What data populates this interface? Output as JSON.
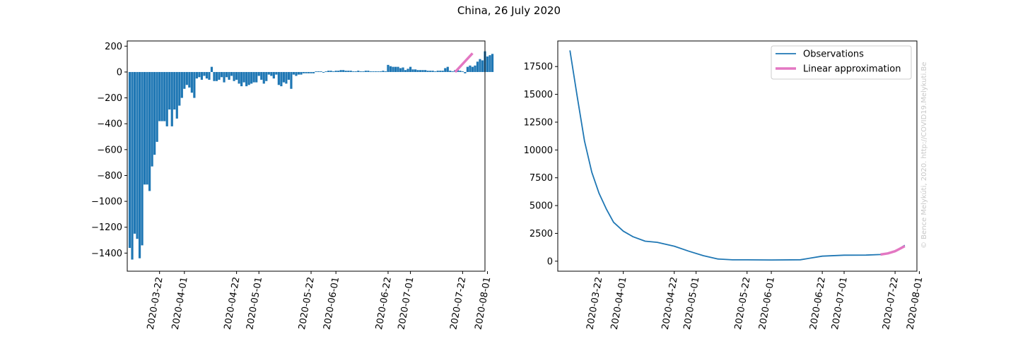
{
  "figure": {
    "title": "China, 26 July 2020"
  },
  "watermark": "© Bence Melykúti, 2020. http://COVID19.Melykuti.Be",
  "colors": {
    "bars": "#1f77b4",
    "observations": "#1f77b4",
    "fit": "#e377c2"
  },
  "chart_data": [
    {
      "type": "bar",
      "title": "",
      "xlabel": "",
      "ylabel": "",
      "xlim": [
        "2020-03-09",
        "2020-07-31"
      ],
      "ylim": [
        -1540,
        240
      ],
      "x_ticks": [
        "2020-03-22",
        "2020-04-01",
        "2020-04-22",
        "2020-05-01",
        "2020-05-22",
        "2020-06-01",
        "2020-06-22",
        "2020-07-01",
        "2020-07-22",
        "2020-08-01"
      ],
      "y_ticks": [
        "200",
        "0",
        "−200",
        "−400",
        "−600",
        "−800",
        "−1000",
        "−1200",
        "−1400"
      ],
      "y_tick_values": [
        200,
        0,
        -200,
        -400,
        -600,
        -800,
        -1000,
        -1200,
        -1400
      ],
      "start_date": "2020-03-10",
      "values": [
        -1360,
        -1450,
        -1250,
        -1290,
        -1440,
        -1340,
        -870,
        -870,
        -920,
        -730,
        -640,
        -540,
        -380,
        -380,
        -380,
        -420,
        -290,
        -420,
        -290,
        -360,
        -260,
        -200,
        -130,
        -100,
        -120,
        -160,
        -200,
        -50,
        -40,
        -60,
        -30,
        -50,
        -60,
        40,
        -70,
        -70,
        -60,
        -40,
        -80,
        -40,
        -60,
        -30,
        -70,
        -60,
        -90,
        -110,
        -80,
        -110,
        -100,
        -90,
        -80,
        -80,
        -30,
        -60,
        -90,
        -70,
        -20,
        -30,
        -50,
        -20,
        -100,
        -110,
        -80,
        -90,
        -60,
        -130,
        -20,
        -30,
        -20,
        -20,
        -10,
        -10,
        -10,
        -10,
        -10,
        5,
        5,
        5,
        -5,
        5,
        10,
        10,
        5,
        10,
        10,
        15,
        15,
        10,
        10,
        10,
        5,
        5,
        10,
        5,
        5,
        10,
        10,
        5,
        5,
        5,
        5,
        5,
        10,
        5,
        55,
        45,
        40,
        40,
        40,
        30,
        35,
        15,
        25,
        40,
        20,
        20,
        15,
        15,
        15,
        15,
        10,
        10,
        10,
        5,
        10,
        10,
        10,
        30,
        40,
        10,
        5,
        15,
        20,
        10,
        5,
        -10,
        40,
        50,
        40,
        50,
        80,
        100,
        90,
        160,
        120,
        130,
        140
      ],
      "fit": {
        "name": "Linear approximation",
        "x": [
          "2020-07-19",
          "2020-07-26"
        ],
        "y": [
          0,
          145
        ]
      }
    },
    {
      "type": "line",
      "title": "",
      "xlabel": "",
      "ylabel": "",
      "xlim": [
        "2020-03-05",
        "2020-07-31"
      ],
      "ylim": [
        -900,
        19800
      ],
      "x_ticks": [
        "2020-03-22",
        "2020-04-01",
        "2020-04-22",
        "2020-05-01",
        "2020-05-22",
        "2020-06-01",
        "2020-06-22",
        "2020-07-01",
        "2020-07-22",
        "2020-08-01"
      ],
      "y_ticks": [
        "17500",
        "15000",
        "12500",
        "10000",
        "7500",
        "5000",
        "2500",
        "0"
      ],
      "y_tick_values": [
        17500,
        15000,
        12500,
        10000,
        7500,
        5000,
        2500,
        0
      ],
      "legend": {
        "position": "upper right"
      },
      "series": [
        {
          "name": "Observations",
          "x": [
            "2020-03-10",
            "2020-03-13",
            "2020-03-16",
            "2020-03-19",
            "2020-03-22",
            "2020-03-25",
            "2020-03-28",
            "2020-04-01",
            "2020-04-05",
            "2020-04-10",
            "2020-04-15",
            "2020-04-22",
            "2020-04-28",
            "2020-05-04",
            "2020-05-10",
            "2020-05-16",
            "2020-05-22",
            "2020-06-01",
            "2020-06-13",
            "2020-06-22",
            "2020-07-01",
            "2020-07-10",
            "2020-07-16",
            "2020-07-19",
            "2020-07-22",
            "2020-07-26"
          ],
          "values": [
            18950,
            14800,
            10800,
            8000,
            6100,
            4700,
            3500,
            2700,
            2200,
            1800,
            1700,
            1350,
            900,
            500,
            200,
            120,
            120,
            110,
            130,
            450,
            540,
            550,
            600,
            720,
            900,
            1430
          ]
        },
        {
          "name": "Linear approximation",
          "x": [
            "2020-07-16",
            "2020-07-19",
            "2020-07-22",
            "2020-07-26"
          ],
          "values": [
            600,
            700,
            900,
            1350
          ]
        }
      ]
    }
  ]
}
